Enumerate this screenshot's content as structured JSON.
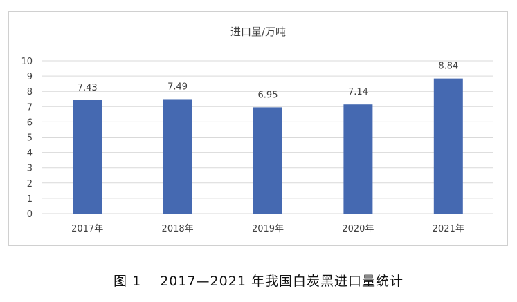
{
  "chart_data": {
    "type": "bar",
    "title": "进口量/万吨",
    "categories": [
      "2017年",
      "2018年",
      "2019年",
      "2020年",
      "2021年"
    ],
    "values": [
      7.43,
      7.49,
      6.95,
      7.14,
      8.84
    ],
    "data_labels": [
      "7.43",
      "7.49",
      "6.95",
      "7.14",
      "8.84"
    ],
    "yticks": [
      "0",
      "1",
      "2",
      "3",
      "4",
      "5",
      "6",
      "7",
      "8",
      "9",
      "10"
    ],
    "ylim": [
      0,
      10
    ],
    "grid": true,
    "legend": "none",
    "bar_color": "#4569b1",
    "grid_color": "#d9d9d9"
  },
  "caption": "图 1　 2017—2021 年我国白炭黑进口量统计"
}
